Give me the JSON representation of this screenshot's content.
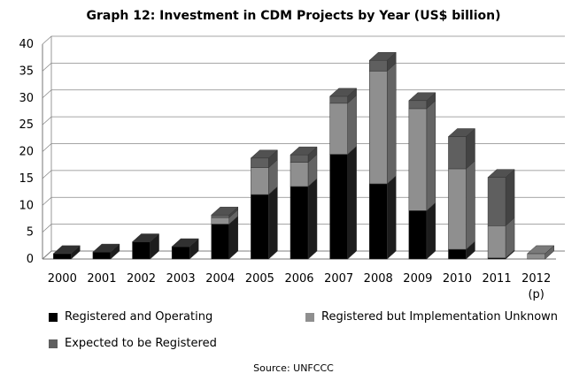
{
  "chart_data": {
    "type": "bar",
    "stacked": true,
    "title": "Graph 12: Investment in CDM Projects by Year (US$ billion)",
    "xlabel": "",
    "ylabel": "",
    "ylim": [
      0,
      40
    ],
    "yticks": [
      0,
      5,
      10,
      15,
      20,
      25,
      30,
      35,
      40
    ],
    "grid": true,
    "legend_position": "bottom",
    "categories": [
      "2000",
      "2001",
      "2002",
      "2003",
      "2004",
      "2005",
      "2006",
      "2007",
      "2008",
      "2009",
      "2010",
      "2011",
      "2012"
    ],
    "category_sublabels": [
      "",
      "",
      "",
      "",
      "",
      "",
      "",
      "",
      "",
      "",
      "",
      "",
      "(p)"
    ],
    "series": [
      {
        "name": "Registered and Operating",
        "color": "#000000",
        "values": [
          1,
          1.3,
          3.2,
          2.3,
          6.5,
          12,
          13.5,
          19.5,
          14,
          9,
          1.8,
          0.2,
          0
        ]
      },
      {
        "name": "Registered but Implementation Unknown",
        "color": "#8f8f8f",
        "values": [
          0,
          0,
          0,
          0,
          1.2,
          5,
          4.5,
          9.5,
          21,
          19,
          15,
          6,
          1
        ]
      },
      {
        "name": "Expected to be Registered",
        "color": "#5f5f5f",
        "values": [
          0,
          0,
          0,
          0,
          0.5,
          1.8,
          1.4,
          1.3,
          2,
          1.5,
          6,
          9,
          0
        ]
      }
    ],
    "source": "Source: UNFCCC"
  }
}
